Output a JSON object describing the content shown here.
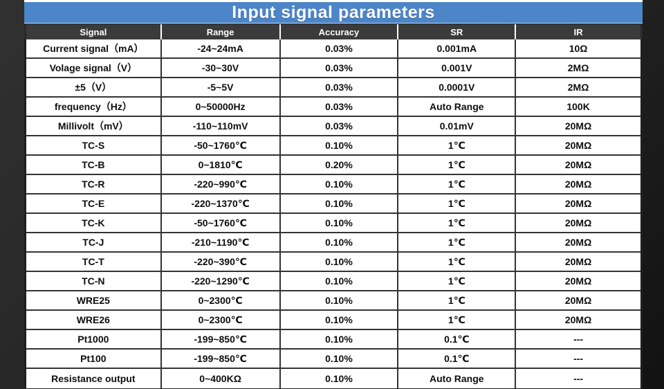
{
  "page": {
    "title": "Input signal parameters"
  },
  "colors": {
    "title_bg": "#4c85c8",
    "header_bg": "#3b3b3b",
    "row_border": "#333333",
    "cell_text": "#0d0d0d",
    "header_text": "#ffffff"
  },
  "table": {
    "columns": [
      "Signal",
      "Range",
      "Accuracy",
      "SR",
      "IR"
    ],
    "rows": [
      [
        "Current signal（mA）",
        "-24~24mA",
        "0.03%",
        "0.001mA",
        "10Ω"
      ],
      [
        "Volage signal（V）",
        "-30~30V",
        "0.03%",
        "0.001V",
        "2MΩ"
      ],
      [
        "±5（V）",
        "-5~5V",
        "0.03%",
        "0.0001V",
        "2MΩ"
      ],
      [
        "frequency（Hz）",
        "0~50000Hz",
        "0.03%",
        "Auto Range",
        "100K"
      ],
      [
        "Millivolt（mV）",
        "-110~110mV",
        "0.03%",
        "0.01mV",
        "20MΩ"
      ],
      [
        "TC-S",
        "-50~1760℃",
        "0.10%",
        "1℃",
        "20MΩ"
      ],
      [
        "TC-B",
        "0~1810℃",
        "0.20%",
        "1℃",
        "20MΩ"
      ],
      [
        "TC-R",
        "-220~990℃",
        "0.10%",
        "1℃",
        "20MΩ"
      ],
      [
        "TC-E",
        "-220~1370℃",
        "0.10%",
        "1℃",
        "20MΩ"
      ],
      [
        "TC-K",
        "-50~1760℃",
        "0.10%",
        "1℃",
        "20MΩ"
      ],
      [
        "TC-J",
        "-210~1190℃",
        "0.10%",
        "1℃",
        "20MΩ"
      ],
      [
        "TC-T",
        "-220~390℃",
        "0.10%",
        "1℃",
        "20MΩ"
      ],
      [
        "TC-N",
        "-220~1290℃",
        "0.10%",
        "1℃",
        "20MΩ"
      ],
      [
        "WRE25",
        "0~2300℃",
        "0.10%",
        "1℃",
        "20MΩ"
      ],
      [
        "WRE26",
        "0~2300℃",
        "0.10%",
        "1℃",
        "20MΩ"
      ],
      [
        "Pt1000",
        "-199~850℃",
        "0.10%",
        "0.1℃",
        "---"
      ],
      [
        "Pt100",
        "-199~850℃",
        "0.10%",
        "0.1℃",
        "---"
      ],
      [
        "Resistance output",
        "0~400KΩ",
        "0.10%",
        "Auto Range",
        "---"
      ]
    ]
  }
}
